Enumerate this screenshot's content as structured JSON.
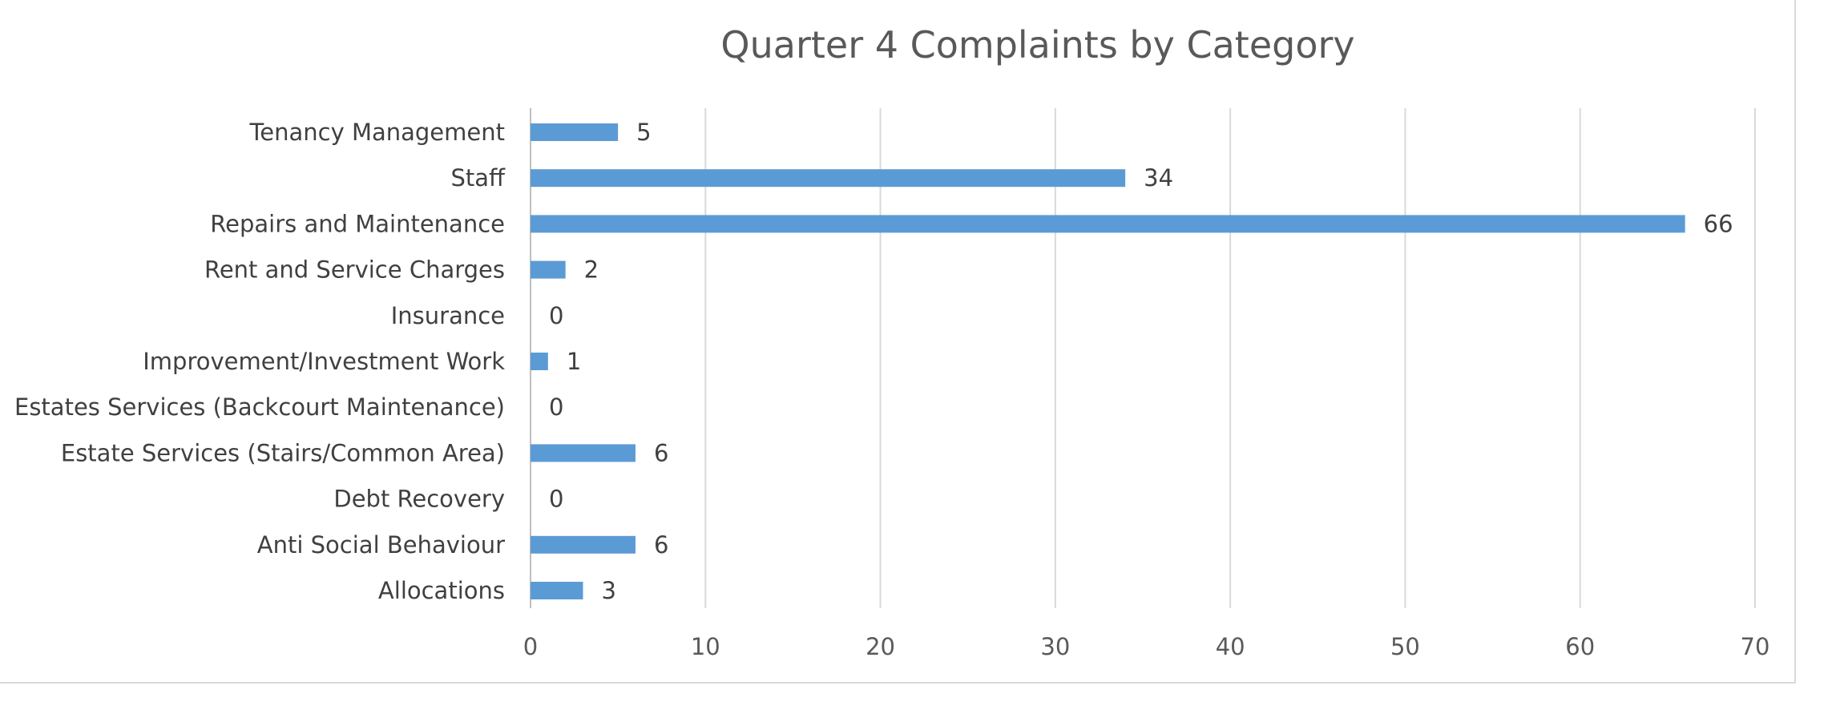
{
  "chart_data": {
    "type": "bar",
    "orientation": "horizontal",
    "title": "Quarter 4 Complaints by Category",
    "categories": [
      "Tenancy Management",
      "Staff",
      "Repairs and Maintenance",
      "Rent and Service Charges",
      "Insurance",
      "Improvement/Investment Work",
      "Estates Services (Backcourt Maintenance)",
      "Estate Services (Stairs/Common Area)",
      "Debt Recovery",
      "Anti Social Behaviour",
      "Allocations"
    ],
    "values": [
      5,
      34,
      66,
      2,
      0,
      1,
      0,
      6,
      0,
      6,
      3
    ],
    "xlim": [
      0,
      70
    ],
    "xticks": [
      0,
      10,
      20,
      30,
      40,
      50,
      60,
      70
    ],
    "xlabel": "",
    "ylabel": "",
    "grid": true,
    "legend": "none",
    "data_labels": true,
    "bar_color": "#5b9bd5"
  }
}
